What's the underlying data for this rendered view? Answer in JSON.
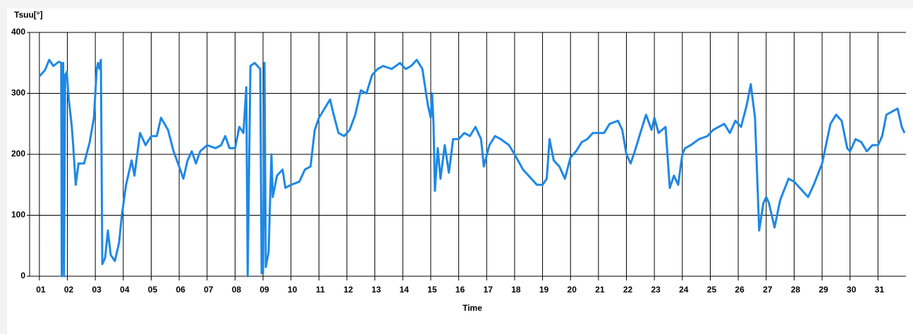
{
  "chart_data": {
    "type": "line",
    "title": "Tsuu[°]",
    "x_label": "Time",
    "color": "#1e88e5",
    "grid": true,
    "xlim": [
      0.65,
      32
    ],
    "ylim": [
      0,
      400
    ],
    "yticks": [
      0,
      100,
      200,
      300,
      400
    ],
    "xticks": [
      {
        "value": 1,
        "label": "01"
      },
      {
        "value": 2,
        "label": "02"
      },
      {
        "value": 3,
        "label": "03"
      },
      {
        "value": 4,
        "label": "04"
      },
      {
        "value": 5,
        "label": "05"
      },
      {
        "value": 6,
        "label": "06"
      },
      {
        "value": 7,
        "label": "07"
      },
      {
        "value": 8,
        "label": "08"
      },
      {
        "value": 9,
        "label": "09"
      },
      {
        "value": 10,
        "label": "10"
      },
      {
        "value": 11,
        "label": "11"
      },
      {
        "value": 12,
        "label": "12"
      },
      {
        "value": 13,
        "label": "13"
      },
      {
        "value": 14,
        "label": "14"
      },
      {
        "value": 15,
        "label": "15"
      },
      {
        "value": 16,
        "label": "16"
      },
      {
        "value": 17,
        "label": "17"
      },
      {
        "value": 18,
        "label": "18"
      },
      {
        "value": 19,
        "label": "19"
      },
      {
        "value": 20,
        "label": "20"
      },
      {
        "value": 21,
        "label": "21"
      },
      {
        "value": 22,
        "label": "22"
      },
      {
        "value": 23,
        "label": "23"
      },
      {
        "value": 24,
        "label": "24"
      },
      {
        "value": 25,
        "label": "25"
      },
      {
        "value": 26,
        "label": "26"
      },
      {
        "value": 27,
        "label": "27"
      },
      {
        "value": 28,
        "label": "28"
      },
      {
        "value": 29,
        "label": "29"
      },
      {
        "value": 30,
        "label": "30"
      },
      {
        "value": 31,
        "label": "31"
      }
    ],
    "x": [
      1.0,
      1.2,
      1.35,
      1.5,
      1.7,
      1.78,
      1.8,
      1.85,
      1.88,
      1.92,
      1.98,
      2.05,
      2.15,
      2.2,
      2.3,
      2.4,
      2.6,
      2.8,
      2.95,
      3.05,
      3.1,
      3.15,
      3.2,
      3.25,
      3.35,
      3.45,
      3.55,
      3.7,
      3.85,
      3.95,
      4.1,
      4.3,
      4.4,
      4.6,
      4.8,
      5.0,
      5.2,
      5.35,
      5.6,
      5.8,
      6.0,
      6.15,
      6.3,
      6.45,
      6.6,
      6.75,
      7.0,
      7.3,
      7.5,
      7.65,
      7.8,
      8.0,
      8.15,
      8.3,
      8.4,
      8.45,
      8.55,
      8.7,
      8.9,
      8.95,
      9.0,
      9.05,
      9.1,
      9.2,
      9.3,
      9.35,
      9.5,
      9.7,
      9.8,
      10.0,
      10.3,
      10.5,
      10.7,
      10.85,
      11.0,
      11.2,
      11.4,
      11.5,
      11.7,
      11.9,
      12.1,
      12.3,
      12.5,
      12.7,
      12.9,
      13.1,
      13.3,
      13.6,
      13.9,
      14.1,
      14.3,
      14.5,
      14.7,
      14.9,
      15.0,
      15.05,
      15.1,
      15.15,
      15.25,
      15.35,
      15.5,
      15.65,
      15.8,
      16.0,
      16.2,
      16.4,
      16.6,
      16.8,
      16.9,
      17.1,
      17.3,
      17.5,
      17.8,
      18.0,
      18.3,
      18.5,
      18.8,
      19.0,
      19.15,
      19.25,
      19.4,
      19.6,
      19.8,
      20.0,
      20.2,
      20.4,
      20.6,
      20.8,
      21.0,
      21.2,
      21.4,
      21.7,
      21.85,
      22.0,
      22.15,
      22.3,
      22.5,
      22.7,
      22.9,
      23.0,
      23.15,
      23.4,
      23.55,
      23.7,
      23.85,
      24.0,
      24.1,
      24.3,
      24.6,
      24.9,
      25.1,
      25.3,
      25.5,
      25.7,
      25.9,
      26.1,
      26.3,
      26.45,
      26.6,
      26.75,
      26.9,
      27.0,
      27.1,
      27.3,
      27.5,
      27.8,
      28.0,
      28.3,
      28.5,
      28.7,
      29.0,
      29.3,
      29.5,
      29.7,
      29.9,
      30.0,
      30.2,
      30.4,
      30.6,
      30.8,
      31.0,
      31.15,
      31.3,
      31.5,
      31.7,
      31.85,
      31.95
    ],
    "values": [
      328,
      338,
      355,
      345,
      352,
      350,
      0,
      350,
      0,
      330,
      335,
      290,
      250,
      220,
      150,
      185,
      185,
      220,
      260,
      340,
      350,
      340,
      355,
      20,
      30,
      75,
      35,
      25,
      55,
      100,
      150,
      190,
      165,
      235,
      215,
      230,
      230,
      260,
      240,
      205,
      180,
      160,
      190,
      205,
      185,
      205,
      215,
      210,
      215,
      230,
      210,
      210,
      245,
      235,
      310,
      0,
      345,
      350,
      340,
      5,
      5,
      350,
      15,
      40,
      200,
      130,
      165,
      175,
      145,
      150,
      155,
      175,
      180,
      240,
      260,
      275,
      290,
      270,
      235,
      230,
      240,
      265,
      305,
      300,
      330,
      340,
      345,
      340,
      350,
      340,
      345,
      355,
      340,
      280,
      260,
      300,
      250,
      140,
      210,
      160,
      215,
      170,
      225,
      225,
      235,
      230,
      245,
      225,
      180,
      215,
      230,
      225,
      215,
      200,
      175,
      165,
      150,
      150,
      160,
      225,
      190,
      180,
      160,
      195,
      205,
      220,
      225,
      235,
      235,
      235,
      250,
      255,
      240,
      200,
      185,
      205,
      235,
      265,
      240,
      260,
      235,
      245,
      145,
      165,
      150,
      200,
      210,
      215,
      225,
      230,
      240,
      245,
      250,
      235,
      255,
      245,
      280,
      315,
      260,
      75,
      120,
      130,
      120,
      80,
      125,
      160,
      155,
      140,
      130,
      150,
      185,
      250,
      265,
      255,
      210,
      205,
      225,
      220,
      205,
      215,
      215,
      230,
      265,
      270,
      275,
      245,
      235
    ]
  }
}
